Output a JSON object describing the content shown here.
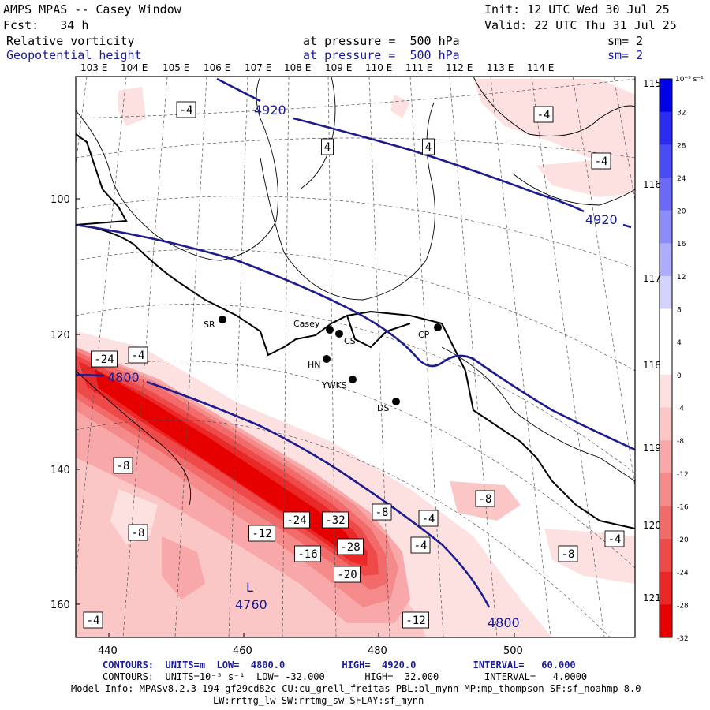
{
  "header": {
    "title": "AMPS MPAS -- Casey Window",
    "init": "Init: 12 UTC Wed 30 Jul 25",
    "fcst": "Fcst:   34 h",
    "valid": "Valid: 22 UTC Thu 31 Jul 25",
    "field1_name": "Relative vorticity",
    "field1_level": "at pressure =  500 hPa",
    "field1_sm": "sm= 2",
    "field2_name": "Geopotential height",
    "field2_level": "at pressure =  500 hPa",
    "field2_sm": "sm= 2"
  },
  "axes": {
    "lon_top": [
      "103 E",
      "104 E",
      "105 E",
      "106 E",
      "107 E",
      "108 E",
      "109 E",
      "110 E",
      "111 E",
      "112 E",
      "113 E",
      "114 E"
    ],
    "lat_right": [
      "115 E",
      "116 E",
      "117 E",
      "118 E",
      "119 E",
      "120 E",
      "121 E"
    ],
    "y_ticks": [
      "100",
      "120",
      "140",
      "160"
    ],
    "x_ticks": [
      "440",
      "460",
      "480",
      "500"
    ]
  },
  "colorbar": {
    "unit": "10⁻⁵ s⁻¹",
    "labels": [
      "32",
      "28",
      "24",
      "20",
      "16",
      "12",
      "8",
      "4",
      "0",
      "-4",
      "-8",
      "-12",
      "-16",
      "-20",
      "-24",
      "-28",
      "-32"
    ],
    "colors": [
      "#0000e6",
      "#2a2af0",
      "#4b4bf5",
      "#6a6af7",
      "#8c8cfa",
      "#adadfc",
      "#d2d2fd",
      "#ffffff",
      "#ffffff",
      "#fde0e0",
      "#fbc6c6",
      "#f8a8a8",
      "#f58a8a",
      "#f26a6a",
      "#ee4a4a",
      "#ea2828",
      "#e60000"
    ]
  },
  "stations": [
    {
      "name": "SR"
    },
    {
      "name": "Casey"
    },
    {
      "name": "CS"
    },
    {
      "name": "CP"
    },
    {
      "name": "HN"
    },
    {
      "name": "YWKS"
    },
    {
      "name": "DS"
    }
  ],
  "contour_labels": {
    "height_4920_a": "4920",
    "height_4920_b": "4920",
    "height_4800_a": "4800",
    "height_4800_b": "4800",
    "low_letter": "L",
    "low_value": "4760",
    "vort": [
      "-4",
      "-4",
      "4",
      "4",
      "-4",
      "-24",
      "-4",
      "-8",
      "-8",
      "-8",
      "-4",
      "-24",
      "-32",
      "-8",
      "-4",
      "-12",
      "-28",
      "-16",
      "-20",
      "-8",
      "-4",
      "-12",
      "-4"
    ]
  },
  "footer": {
    "line1": "CONTOURS:  UNITS=m  LOW=  4800.0          HIGH=  4920.0          INTERVAL=   60.000",
    "line2": "CONTOURS:  UNITS=10⁻⁵ s⁻¹  LOW= -32.000       HIGH=  32.000        INTERVAL=   4.0000",
    "line3": "Model Info: MPASv8.2.3-194-gf29cd82c CU:cu_grell_freitas PBL:bl_mynn MP:mp_thompson SF:sf_noahmp 8.0",
    "line4": "LW:rrtmg_lw SW:rrtmg_sw SFLAY:sf_mynn"
  }
}
